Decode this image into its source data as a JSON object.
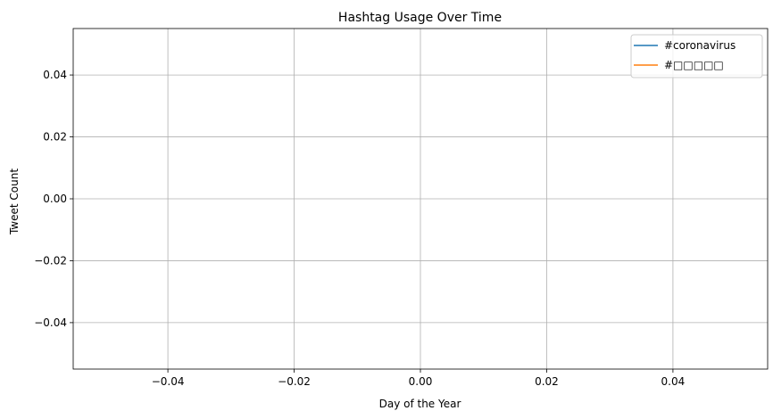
{
  "chart_data": {
    "type": "line",
    "title": "Hashtag Usage Over Time",
    "xlabel": "Day of the Year",
    "ylabel": "Tweet Count",
    "xlim": [
      -0.055,
      0.055
    ],
    "ylim": [
      -0.055,
      0.055
    ],
    "xticks": [
      -0.04,
      -0.02,
      0.0,
      0.02,
      0.04
    ],
    "xtick_labels": [
      "−0.04",
      "−0.02",
      "0.00",
      "0.02",
      "0.04"
    ],
    "yticks": [
      -0.04,
      -0.02,
      0.0,
      0.02,
      0.04
    ],
    "ytick_labels": [
      "−0.04",
      "−0.02",
      "0.00",
      "0.02",
      "0.04"
    ],
    "grid": true,
    "legend_position": "upper right",
    "series": [
      {
        "name": "#coronavirus",
        "color": "#1f77b4",
        "x": [],
        "y": []
      },
      {
        "name": "#□□□□□",
        "color": "#ff7f0e",
        "x": [],
        "y": []
      }
    ]
  }
}
